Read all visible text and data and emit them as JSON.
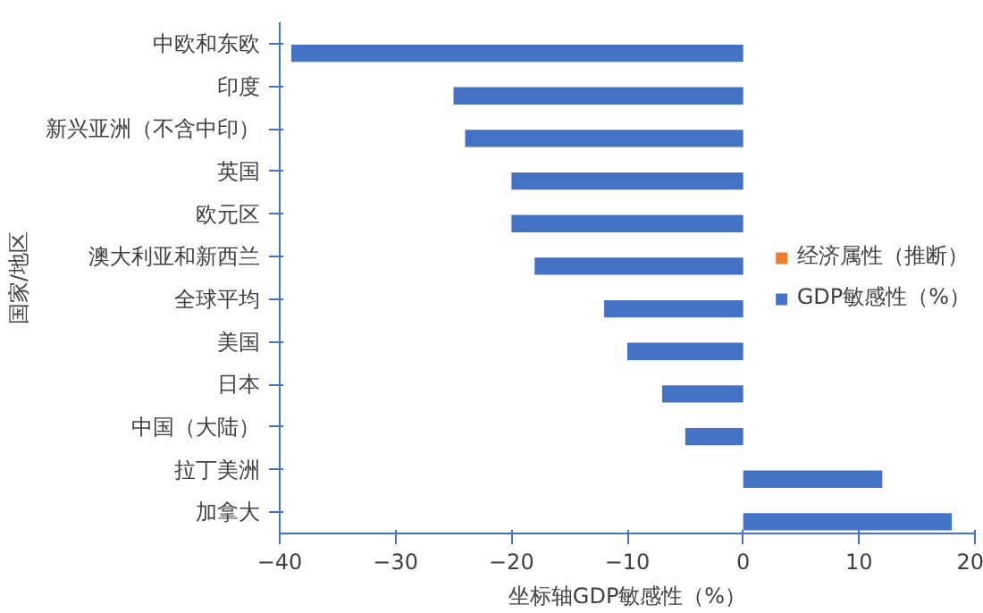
{
  "chart_data": {
    "type": "bar",
    "orientation": "horizontal",
    "xlabel": "坐标轴GDP敏感性（%）",
    "ylabel": "国家/地区",
    "categories": [
      "中欧和东欧",
      "印度",
      "新兴亚洲（不含中印）",
      "英国",
      "欧元区",
      "澳大利亚和新西兰",
      "全球平均",
      "美国",
      "日本",
      "中国（大陆）",
      "拉丁美洲",
      "加拿大"
    ],
    "series": [
      {
        "name": "经济属性（推断）",
        "color": "#ed7d31",
        "values": [
          null,
          null,
          null,
          null,
          null,
          null,
          null,
          null,
          null,
          null,
          null,
          null
        ]
      },
      {
        "name": "GDP敏感性（%）",
        "color": "#4472c4",
        "values": [
          -39,
          -25,
          -24,
          -20,
          -20,
          -18,
          -12,
          -10,
          -7,
          -5,
          12,
          18
        ]
      }
    ],
    "xlim": [
      -40,
      20
    ],
    "xticks": [
      -40,
      -30,
      -20,
      -10,
      0,
      10,
      20
    ],
    "grid": false,
    "legend": "right"
  }
}
